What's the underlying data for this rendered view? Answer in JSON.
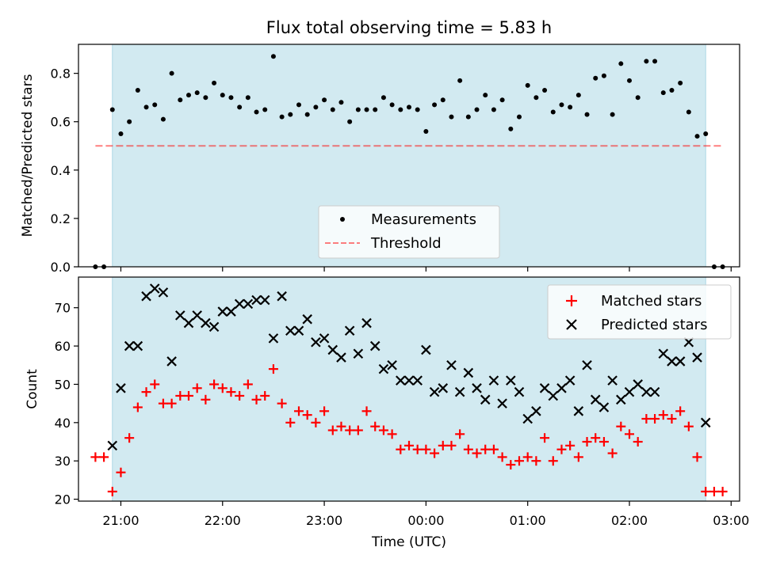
{
  "title": "Flux total observing time = 5.83 h",
  "colors": {
    "band": "#add8e6",
    "measurements": "#000000",
    "threshold": "#ff0000",
    "matched": "#ff0000",
    "predicted": "#000000"
  },
  "chart_data": [
    {
      "type": "scatter",
      "panel": "top",
      "ylabel": "Matched/Predicted stars",
      "ylim": [
        0,
        0.92
      ],
      "yticks": [
        0.0,
        0.2,
        0.4,
        0.6,
        0.8
      ],
      "ytick_labels": [
        "0.0",
        "0.2",
        "0.4",
        "0.6",
        "0.8"
      ],
      "shaded_range": [
        "20:55",
        "02:45"
      ],
      "legend": {
        "placement": "lower center",
        "entries": [
          "Measurements",
          "Threshold"
        ]
      },
      "threshold": {
        "name": "Threshold",
        "y": 0.5,
        "x_range": [
          "20:45",
          "02:55"
        ]
      },
      "series": [
        {
          "name": "Measurements",
          "x": [
            "20:45",
            "20:50",
            "20:55",
            "21:00",
            "21:05",
            "21:10",
            "21:15",
            "21:20",
            "21:25",
            "21:30",
            "21:35",
            "21:40",
            "21:45",
            "21:50",
            "21:55",
            "22:00",
            "22:05",
            "22:10",
            "22:15",
            "22:20",
            "22:25",
            "22:30",
            "22:35",
            "22:40",
            "22:45",
            "22:50",
            "22:55",
            "23:00",
            "23:05",
            "23:10",
            "23:15",
            "23:20",
            "23:25",
            "23:30",
            "23:35",
            "23:40",
            "23:45",
            "23:50",
            "23:55",
            "00:00",
            "00:05",
            "00:10",
            "00:15",
            "00:20",
            "00:25",
            "00:30",
            "00:35",
            "00:40",
            "00:45",
            "00:50",
            "00:55",
            "01:00",
            "01:05",
            "01:10",
            "01:15",
            "01:20",
            "01:25",
            "01:30",
            "01:35",
            "01:40",
            "01:45",
            "01:50",
            "01:55",
            "02:00",
            "02:05",
            "02:10",
            "02:15",
            "02:20",
            "02:25",
            "02:30",
            "02:35",
            "02:40",
            "02:45",
            "02:50",
            "02:55"
          ],
          "y": [
            0.0,
            0.0,
            0.65,
            0.55,
            0.6,
            0.73,
            0.66,
            0.67,
            0.61,
            0.8,
            0.69,
            0.71,
            0.72,
            0.7,
            0.76,
            0.71,
            0.7,
            0.66,
            0.7,
            0.64,
            0.65,
            0.87,
            0.62,
            0.63,
            0.67,
            0.63,
            0.66,
            0.69,
            0.65,
            0.68,
            0.6,
            0.65,
            0.65,
            0.65,
            0.7,
            0.67,
            0.65,
            0.66,
            0.65,
            0.56,
            0.67,
            0.69,
            0.62,
            0.77,
            0.62,
            0.65,
            0.71,
            0.65,
            0.69,
            0.57,
            0.62,
            0.75,
            0.7,
            0.73,
            0.64,
            0.67,
            0.66,
            0.71,
            0.63,
            0.78,
            0.79,
            0.63,
            0.84,
            0.77,
            0.7,
            0.85,
            0.85,
            0.72,
            0.73,
            0.76,
            0.64,
            0.54,
            0.55,
            0.0,
            0.0
          ]
        }
      ]
    },
    {
      "type": "scatter",
      "panel": "bottom",
      "xlabel": "Time (UTC)",
      "ylabel": "Count",
      "ylim": [
        19.5,
        78
      ],
      "yticks": [
        20,
        30,
        40,
        50,
        60,
        70
      ],
      "ytick_labels": [
        "20",
        "30",
        "40",
        "50",
        "60",
        "70"
      ],
      "xticks": [
        "21:00",
        "22:00",
        "23:00",
        "00:00",
        "01:00",
        "02:00",
        "03:00"
      ],
      "xlim": [
        "20:35",
        "03:05"
      ],
      "shaded_range": [
        "20:55",
        "02:45"
      ],
      "legend": {
        "placement": "top-right",
        "entries": [
          "Matched stars",
          "Predicted stars"
        ]
      },
      "x": [
        "20:45",
        "20:50",
        "20:55",
        "21:00",
        "21:05",
        "21:10",
        "21:15",
        "21:20",
        "21:25",
        "21:30",
        "21:35",
        "21:40",
        "21:45",
        "21:50",
        "21:55",
        "22:00",
        "22:05",
        "22:10",
        "22:15",
        "22:20",
        "22:25",
        "22:30",
        "22:35",
        "22:40",
        "22:45",
        "22:50",
        "22:55",
        "23:00",
        "23:05",
        "23:10",
        "23:15",
        "23:20",
        "23:25",
        "23:30",
        "23:35",
        "23:40",
        "23:45",
        "23:50",
        "23:55",
        "00:00",
        "00:05",
        "00:10",
        "00:15",
        "00:20",
        "00:25",
        "00:30",
        "00:35",
        "00:40",
        "00:45",
        "00:50",
        "00:55",
        "01:00",
        "01:05",
        "01:10",
        "01:15",
        "01:20",
        "01:25",
        "01:30",
        "01:35",
        "01:40",
        "01:45",
        "01:50",
        "01:55",
        "02:00",
        "02:05",
        "02:10",
        "02:15",
        "02:20",
        "02:25",
        "02:30",
        "02:35",
        "02:40",
        "02:45",
        "02:50",
        "02:55"
      ],
      "series": [
        {
          "name": "Matched stars",
          "values": [
            31,
            31,
            22,
            27,
            36,
            44,
            48,
            50,
            45,
            45,
            47,
            47,
            49,
            46,
            50,
            49,
            48,
            47,
            50,
            46,
            47,
            54,
            45,
            40,
            43,
            42,
            40,
            43,
            38,
            39,
            38,
            38,
            43,
            39,
            38,
            37,
            33,
            34,
            33,
            33,
            32,
            34,
            34,
            37,
            33,
            32,
            33,
            33,
            31,
            29,
            30,
            31,
            30,
            36,
            30,
            33,
            34,
            31,
            35,
            36,
            35,
            32,
            39,
            37,
            35,
            41,
            41,
            42,
            41,
            43,
            39,
            31,
            22,
            22,
            22
          ]
        },
        {
          "name": "Predicted stars",
          "values": [
            null,
            null,
            34,
            49,
            60,
            60,
            73,
            75,
            74,
            56,
            68,
            66,
            68,
            66,
            65,
            69,
            69,
            71,
            71,
            72,
            72,
            62,
            73,
            64,
            64,
            67,
            61,
            62,
            59,
            57,
            64,
            58,
            66,
            60,
            54,
            55,
            51,
            51,
            51,
            59,
            48,
            49,
            55,
            48,
            53,
            49,
            46,
            51,
            45,
            51,
            48,
            41,
            43,
            49,
            47,
            49,
            51,
            43,
            55,
            46,
            44,
            51,
            46,
            48,
            50,
            48,
            48,
            58,
            56,
            56,
            61,
            57,
            40,
            null,
            null
          ]
        }
      ]
    }
  ]
}
